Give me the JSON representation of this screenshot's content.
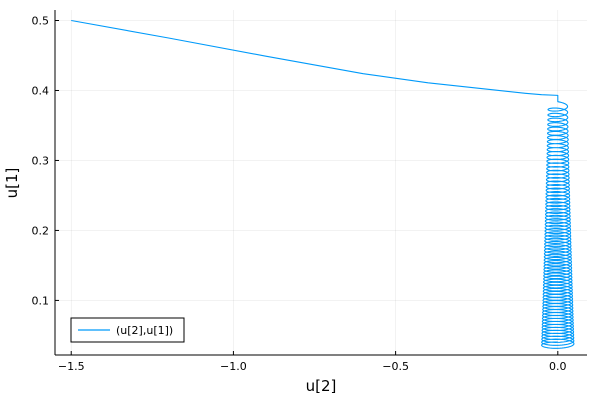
{
  "chart_data": {
    "type": "line",
    "title": "",
    "xlabel": "u[2]",
    "ylabel": "u[1]",
    "xlim": [
      -1.55,
      0.09
    ],
    "ylim": [
      0.022,
      0.515
    ],
    "x_ticks": [
      -1.5,
      -1.0,
      -0.5,
      0.0
    ],
    "x_tick_labels": [
      "−1.5",
      "−1.0",
      "−0.5",
      "0.0"
    ],
    "y_ticks": [
      0.1,
      0.2,
      0.3,
      0.4,
      0.5
    ],
    "y_tick_labels": [
      "0.1",
      "0.2",
      "0.3",
      "0.4",
      "0.5"
    ],
    "grid": true,
    "legend_position": "bottom-left",
    "series": [
      {
        "name": "(u[2],u[1])",
        "color": "#009AFA",
        "segments": [
          {
            "kind": "line",
            "x": [
              -1.5,
              -1.2,
              -0.9,
              -0.6,
              -0.4,
              -0.2,
              -0.1,
              -0.05,
              0.0
            ],
            "y": [
              0.5,
              0.475,
              0.449,
              0.424,
              0.411,
              0.401,
              0.396,
              0.394,
              0.393
            ]
          },
          {
            "kind": "spiral",
            "center_x": 0.0,
            "amplitude_start": 0.03,
            "amplitude_end": 0.05,
            "y_start": 0.38,
            "y_end": 0.035,
            "turns": 70
          }
        ]
      }
    ]
  }
}
